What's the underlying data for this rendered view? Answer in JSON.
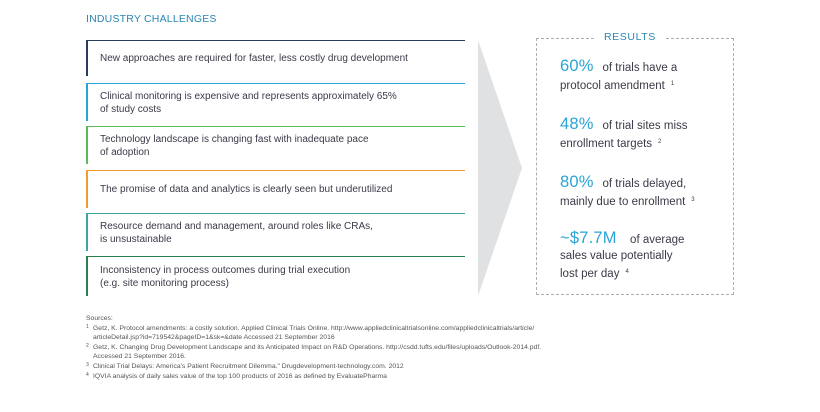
{
  "section_title": "INDUSTRY CHALLENGES",
  "challenges": [
    {
      "text": "New approaches are required for faster,        less costly    drug development",
      "color": "#2a3d5e"
    },
    {
      "text": "Clinical monitoring     is expensive and represents approximately 65% of study costs",
      "line1": "Clinical monitoring     is expensive and represents approximately 65%",
      "line2": "of study costs",
      "color": "#2aa4d5"
    },
    {
      "text": "Technology landscape     is changing fast with inadequate pace of adoption",
      "line1": "Technology landscape     is changing fast with inadequate pace",
      "line2": "of adoption",
      "color": "#5cb85c"
    },
    {
      "text": "The promise of data and       analytics   is clearly seen but underutilized",
      "color": "#f29b2f"
    },
    {
      "text": "Resource demand      and management, around roles like CRAs, is unsustainable",
      "line1": "Resource demand      and management, around roles like CRAs,",
      "line2": "is unsustainable",
      "color": "#3aa7a0"
    },
    {
      "text": "Inconsistency    in process outcomes during trial execution (e.g. site monitoring process)",
      "line1": "Inconsistency    in process outcomes during trial execution",
      "line2": "(e.g. site monitoring process)",
      "color": "#2e7d4e"
    }
  ],
  "results": {
    "label": "RESULTS",
    "items": [
      {
        "big": "60%",
        "rest1": "of trials have a",
        "rest2": "protocol amendment",
        "sup": "1"
      },
      {
        "big": "48%",
        "rest1": "of trial sites miss",
        "rest2": "enrollment targets",
        "sup": "2"
      },
      {
        "big": "80%",
        "rest1": "of trials delayed,",
        "rest2": "mainly due to enrollment",
        "sup": "3"
      },
      {
        "big": "~$7.7M",
        "rest1": "of average",
        "rest2": "sales value potentially",
        "rest3": "lost per day",
        "sup": "4"
      }
    ]
  },
  "sources": {
    "title": "Sources:",
    "items": [
      {
        "num": "1",
        "line1": "Getz, K. Protocol amendments: a costly solution. Applied Clinical Trials Online. http://www.appliedclinicaltrialsonline.com/appliedclinicaltrials/article/",
        "line2": "articleDetail.jsp?id=719542&pageID=1&sk=&date Accessed 21 September 2016"
      },
      {
        "num": "2",
        "line1": "Getz, K. Changing Drug Development Landscape and its Anticipated Impact on R&D Operations. http://csdd.tufts.edu/files/uploads/Outlook-2014.pdf.",
        "line2": "Accessed 21 September 2016."
      },
      {
        "num": "3",
        "line1": "Clinical Trial Delays: America's Patient Recruitment Dilemma.\" Drugdevelopment-technology.com. 2012"
      },
      {
        "num": "4",
        "line1": "IQVIA analysis of daily sales value of the top 100 products of 2016 as defined by EvaluatePharma"
      }
    ]
  }
}
